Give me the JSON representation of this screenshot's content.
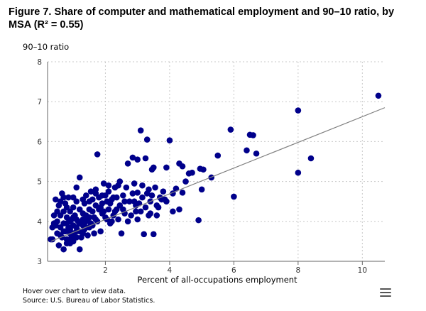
{
  "title": "Figure 7. Share of computer and mathematical employment and 90–10 ratio, by MSA (R² = 0.55)",
  "hint": "Hover over chart to view data.",
  "source": "Source: U.S. Bureau of Labor Statistics.",
  "menu_icon": "hamburger-menu-icon",
  "colors": {
    "points": "#00008b",
    "trend": "#808080",
    "grid": "#c8c8c8"
  },
  "chart_data": {
    "type": "scatter",
    "xlabel": "Percent of all-occupations employment",
    "ylabel": "90–10 ratio",
    "xlim": [
      0.2,
      10.7
    ],
    "ylim": [
      3,
      8
    ],
    "xticks": [
      2,
      4,
      6,
      8,
      10
    ],
    "yticks": [
      3,
      4,
      5,
      6,
      7,
      8
    ],
    "grid": true,
    "trendline": {
      "x": [
        0.3,
        10.7
      ],
      "y": [
        3.5,
        6.85
      ]
    },
    "points": [
      [
        10.5,
        7.15
      ],
      [
        8.0,
        6.78
      ],
      [
        8.4,
        5.58
      ],
      [
        8.0,
        5.22
      ],
      [
        6.7,
        5.7
      ],
      [
        6.5,
        6.17
      ],
      [
        6.6,
        6.16
      ],
      [
        6.4,
        5.78
      ],
      [
        5.9,
        6.3
      ],
      [
        6.0,
        4.62
      ],
      [
        5.5,
        5.65
      ],
      [
        5.3,
        5.1
      ],
      [
        5.05,
        5.3
      ],
      [
        4.95,
        5.32
      ],
      [
        5.0,
        4.8
      ],
      [
        4.9,
        4.03
      ],
      [
        4.6,
        5.2
      ],
      [
        4.7,
        5.22
      ],
      [
        4.5,
        5.0
      ],
      [
        4.4,
        5.38
      ],
      [
        4.3,
        5.45
      ],
      [
        4.3,
        4.3
      ],
      [
        4.4,
        4.72
      ],
      [
        4.2,
        4.82
      ],
      [
        4.0,
        6.03
      ],
      [
        4.1,
        4.7
      ],
      [
        3.9,
        5.35
      ],
      [
        3.8,
        4.75
      ],
      [
        3.85,
        4.55
      ],
      [
        3.75,
        4.55
      ],
      [
        3.7,
        4.6
      ],
      [
        3.6,
        4.4
      ],
      [
        3.5,
        5.35
      ],
      [
        3.45,
        5.3
      ],
      [
        3.4,
        4.5
      ],
      [
        3.4,
        4.2
      ],
      [
        3.35,
        4.15
      ],
      [
        3.5,
        3.68
      ],
      [
        3.2,
        3.68
      ],
      [
        3.3,
        6.05
      ],
      [
        3.1,
        6.28
      ],
      [
        3.0,
        5.55
      ],
      [
        2.85,
        5.6
      ],
      [
        3.25,
        5.58
      ],
      [
        3.15,
        4.9
      ],
      [
        3.0,
        4.72
      ],
      [
        2.9,
        4.95
      ],
      [
        2.95,
        4.4
      ],
      [
        2.8,
        4.15
      ],
      [
        2.7,
        5.45
      ],
      [
        2.6,
        4.5
      ],
      [
        2.55,
        4.3
      ],
      [
        2.45,
        5.0
      ],
      [
        2.4,
        4.9
      ],
      [
        2.35,
        4.6
      ],
      [
        2.3,
        4.85
      ],
      [
        2.25,
        4.15
      ],
      [
        2.2,
        4.0
      ],
      [
        2.5,
        3.7
      ],
      [
        2.15,
        3.95
      ],
      [
        2.1,
        4.3
      ],
      [
        2.05,
        4.5
      ],
      [
        2.0,
        4.65
      ],
      [
        1.95,
        4.95
      ],
      [
        1.9,
        4.2
      ],
      [
        1.85,
        3.75
      ],
      [
        1.8,
        4.6
      ],
      [
        1.75,
        5.68
      ],
      [
        1.7,
        4.8
      ],
      [
        1.7,
        4.4
      ],
      [
        1.65,
        4.1
      ],
      [
        1.6,
        3.9
      ],
      [
        1.6,
        4.55
      ],
      [
        1.55,
        4.75
      ],
      [
        1.5,
        4.3
      ],
      [
        1.45,
        4.05
      ],
      [
        1.4,
        3.85
      ],
      [
        1.4,
        4.65
      ],
      [
        1.35,
        4.45
      ],
      [
        1.3,
        4.2
      ],
      [
        1.3,
        3.7
      ],
      [
        1.25,
        3.95
      ],
      [
        1.2,
        4.3
      ],
      [
        1.2,
        5.1
      ],
      [
        1.15,
        4.0
      ],
      [
        1.1,
        3.75
      ],
      [
        1.1,
        4.5
      ],
      [
        1.05,
        4.15
      ],
      [
        1.0,
        3.9
      ],
      [
        1.0,
        4.35
      ],
      [
        0.95,
        3.6
      ],
      [
        0.95,
        4.05
      ],
      [
        0.9,
        4.25
      ],
      [
        0.9,
        3.45
      ],
      [
        0.85,
        4.6
      ],
      [
        0.85,
        3.85
      ],
      [
        0.8,
        4.1
      ],
      [
        0.8,
        3.55
      ],
      [
        0.75,
        4.45
      ],
      [
        0.75,
        3.75
      ],
      [
        0.7,
        3.95
      ],
      [
        0.7,
        4.25
      ],
      [
        0.65,
        3.6
      ],
      [
        0.65,
        4.7
      ],
      [
        0.6,
        3.85
      ],
      [
        0.6,
        4.15
      ],
      [
        0.55,
        3.4
      ],
      [
        0.55,
        4.4
      ],
      [
        0.5,
        4.0
      ],
      [
        0.5,
        3.7
      ],
      [
        0.45,
        4.55
      ],
      [
        0.45,
        3.9
      ],
      [
        0.4,
        4.15
      ],
      [
        0.35,
        3.55
      ],
      [
        0.35,
        3.85
      ],
      [
        0.3,
        3.55
      ],
      [
        1.2,
        3.3
      ],
      [
        0.7,
        3.3
      ],
      [
        0.9,
        3.7
      ],
      [
        1.0,
        3.5
      ],
      [
        1.1,
        4.05
      ],
      [
        1.25,
        3.6
      ],
      [
        1.35,
        3.8
      ],
      [
        1.45,
        3.65
      ],
      [
        1.55,
        3.95
      ],
      [
        1.65,
        3.7
      ],
      [
        1.75,
        4.0
      ],
      [
        1.85,
        4.35
      ],
      [
        1.95,
        4.25
      ],
      [
        2.05,
        4.05
      ],
      [
        2.15,
        4.45
      ],
      [
        2.25,
        4.6
      ],
      [
        2.35,
        4.3
      ],
      [
        2.45,
        4.4
      ],
      [
        2.55,
        4.65
      ],
      [
        2.65,
        4.85
      ],
      [
        2.75,
        4.5
      ],
      [
        2.85,
        4.7
      ],
      [
        2.95,
        4.25
      ],
      [
        3.05,
        4.45
      ],
      [
        3.15,
        4.6
      ],
      [
        3.25,
        4.35
      ],
      [
        3.35,
        4.8
      ],
      [
        3.45,
        4.65
      ],
      [
        3.55,
        4.85
      ],
      [
        3.65,
        4.35
      ],
      [
        0.8,
        3.95
      ],
      [
        0.9,
        4.0
      ],
      [
        1.0,
        4.1
      ],
      [
        1.1,
        3.85
      ],
      [
        1.2,
        3.95
      ],
      [
        1.3,
        4.05
      ],
      [
        1.4,
        4.15
      ],
      [
        1.5,
        3.85
      ],
      [
        1.6,
        4.25
      ],
      [
        1.7,
        4.05
      ],
      [
        1.8,
        4.3
      ],
      [
        1.9,
        4.45
      ],
      [
        2.0,
        4.1
      ],
      [
        2.1,
        4.75
      ],
      [
        2.2,
        4.55
      ],
      [
        2.3,
        4.25
      ],
      [
        2.4,
        4.05
      ],
      [
        2.6,
        4.2
      ],
      [
        2.7,
        4.0
      ],
      [
        2.9,
        4.5
      ],
      [
        3.0,
        4.05
      ],
      [
        3.1,
        4.25
      ],
      [
        3.3,
        4.7
      ],
      [
        3.6,
        4.15
      ],
      [
        3.9,
        4.5
      ],
      [
        4.1,
        4.25
      ],
      [
        1.0,
        4.6
      ],
      [
        1.1,
        4.85
      ],
      [
        1.3,
        4.55
      ],
      [
        1.5,
        4.5
      ],
      [
        1.7,
        4.7
      ],
      [
        1.9,
        4.65
      ],
      [
        2.1,
        4.9
      ],
      [
        0.6,
        4.5
      ],
      [
        0.7,
        4.6
      ],
      [
        0.8,
        4.35
      ],
      [
        0.9,
        3.8
      ],
      [
        1.0,
        3.7
      ],
      [
        1.1,
        3.6
      ],
      [
        1.2,
        3.75
      ],
      [
        1.3,
        3.9
      ],
      [
        1.4,
        4.0
      ],
      [
        1.5,
        4.1
      ],
      [
        0.5,
        4.25
      ],
      [
        0.6,
        3.65
      ],
      [
        0.7,
        3.75
      ],
      [
        0.8,
        3.45
      ],
      [
        0.9,
        3.55
      ],
      [
        1.0,
        3.65
      ],
      [
        0.4,
        3.95
      ]
    ]
  }
}
